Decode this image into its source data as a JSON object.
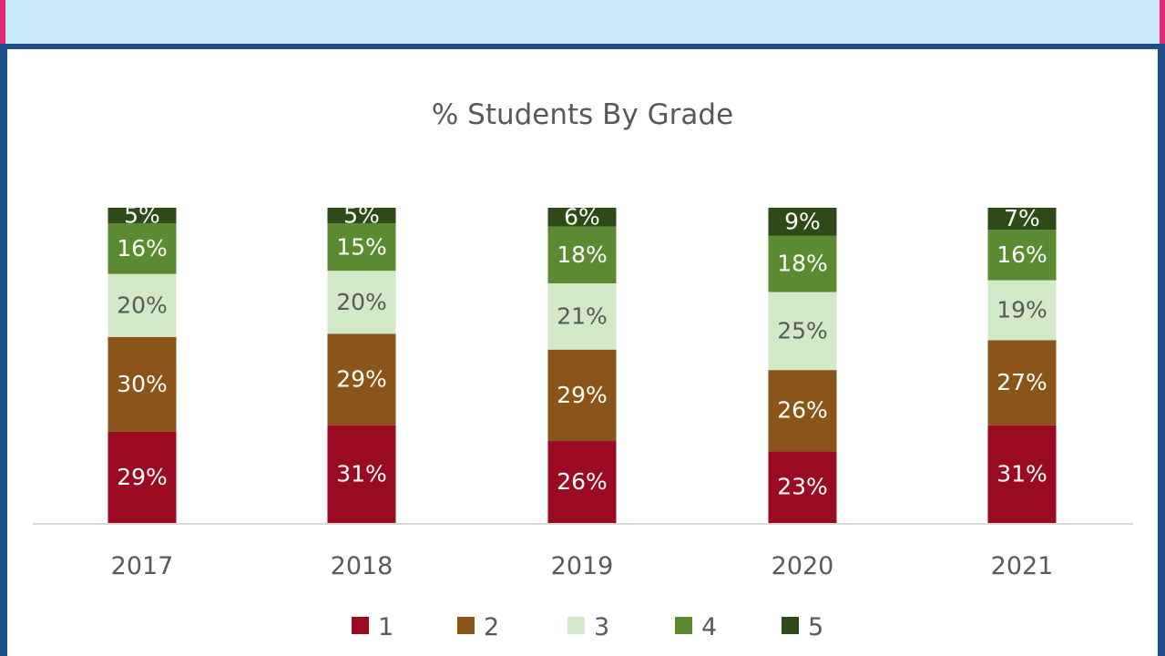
{
  "colors": {
    "banner": "#c9e8f7",
    "frame": "#1f4f8a",
    "accent_pink": "#e4287a"
  },
  "chart_data": {
    "type": "bar",
    "stacked": true,
    "title": "% Students By Grade",
    "categories": [
      "2017",
      "2018",
      "2019",
      "2020",
      "2021"
    ],
    "series": [
      {
        "name": "1",
        "color": "#9a0b22",
        "values": [
          29,
          31,
          26,
          23,
          31
        ]
      },
      {
        "name": "2",
        "color": "#8b5418",
        "values": [
          30,
          29,
          29,
          26,
          27
        ]
      },
      {
        "name": "3",
        "color": "#d3e8c6",
        "values": [
          20,
          20,
          21,
          25,
          19
        ]
      },
      {
        "name": "4",
        "color": "#5c8a32",
        "values": [
          16,
          15,
          18,
          18,
          16
        ]
      },
      {
        "name": "5",
        "color": "#2d4a17",
        "values": [
          5,
          5,
          6,
          9,
          7
        ]
      }
    ],
    "value_suffix": "%",
    "ylim": [
      0,
      100
    ],
    "grid": false,
    "legend_position": "bottom"
  }
}
